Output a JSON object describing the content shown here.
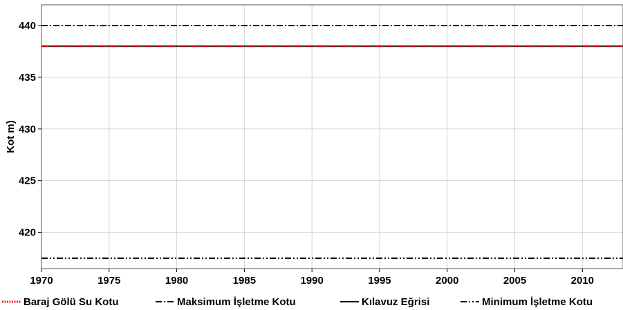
{
  "chart_data": {
    "type": "line",
    "ylabel": "Kot m)",
    "xlabel": "",
    "xlim": [
      1970,
      2013
    ],
    "ylim": [
      416.5,
      442
    ],
    "xticks": [
      1970,
      1975,
      1980,
      1985,
      1990,
      1995,
      2000,
      2005,
      2010
    ],
    "yticks": [
      420,
      425,
      430,
      435,
      440
    ],
    "grid": true,
    "legend_position": "bottom",
    "series": [
      {
        "name": "Baraj Gölü Su Kotu",
        "style": "dotted",
        "color": "#e8202a",
        "x": [
          1970,
          2013
        ],
        "y": [
          438,
          438
        ]
      },
      {
        "name": "Maksimum İşletme Kotu",
        "style": "dashdot",
        "color": "#000000",
        "x": [
          1970,
          2013
        ],
        "y": [
          440,
          440
        ]
      },
      {
        "name": "Kılavuz Eğrisi",
        "style": "solid",
        "color": "#000000",
        "x": [
          1970,
          2013
        ],
        "y": [
          438,
          438
        ]
      },
      {
        "name": "Minimum İşletme Kotu",
        "style": "dashdotdot",
        "color": "#000000",
        "x": [
          1970,
          2013
        ],
        "y": [
          417.5,
          417.5
        ]
      }
    ]
  }
}
